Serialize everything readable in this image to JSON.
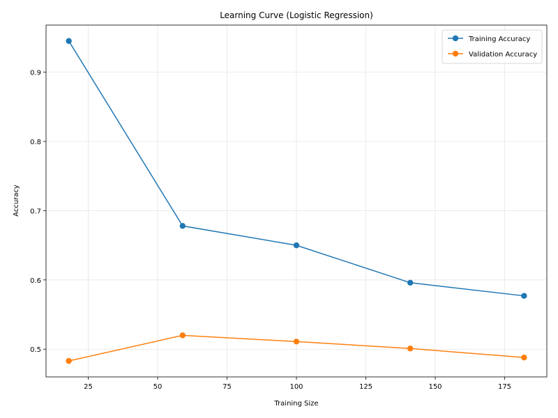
{
  "chart_data": {
    "type": "line",
    "title": "Learning Curve (Logistic Regression)",
    "xlabel": "Training Size",
    "ylabel": "Accuracy",
    "x": [
      18,
      59,
      100,
      141,
      182
    ],
    "series": [
      {
        "name": "Training Accuracy",
        "color": "#1f77b4",
        "values": [
          0.945,
          0.678,
          0.65,
          0.596,
          0.577
        ]
      },
      {
        "name": "Validation Accuracy",
        "color": "#ff7f0e",
        "values": [
          0.483,
          0.52,
          0.511,
          0.501,
          0.488
        ]
      }
    ],
    "xlim": [
      9.8,
      190.2
    ],
    "ylim": [
      0.46,
      0.968
    ],
    "xticks": [
      25,
      50,
      75,
      100,
      125,
      150,
      175
    ],
    "yticks": [
      0.5,
      0.6,
      0.7,
      0.8,
      0.9
    ],
    "xtick_labels": [
      "25",
      "50",
      "75",
      "100",
      "125",
      "150",
      "175"
    ],
    "ytick_labels": [
      "0.5",
      "0.6",
      "0.7",
      "0.8",
      "0.9"
    ],
    "grid": true,
    "legend": "top-right"
  }
}
